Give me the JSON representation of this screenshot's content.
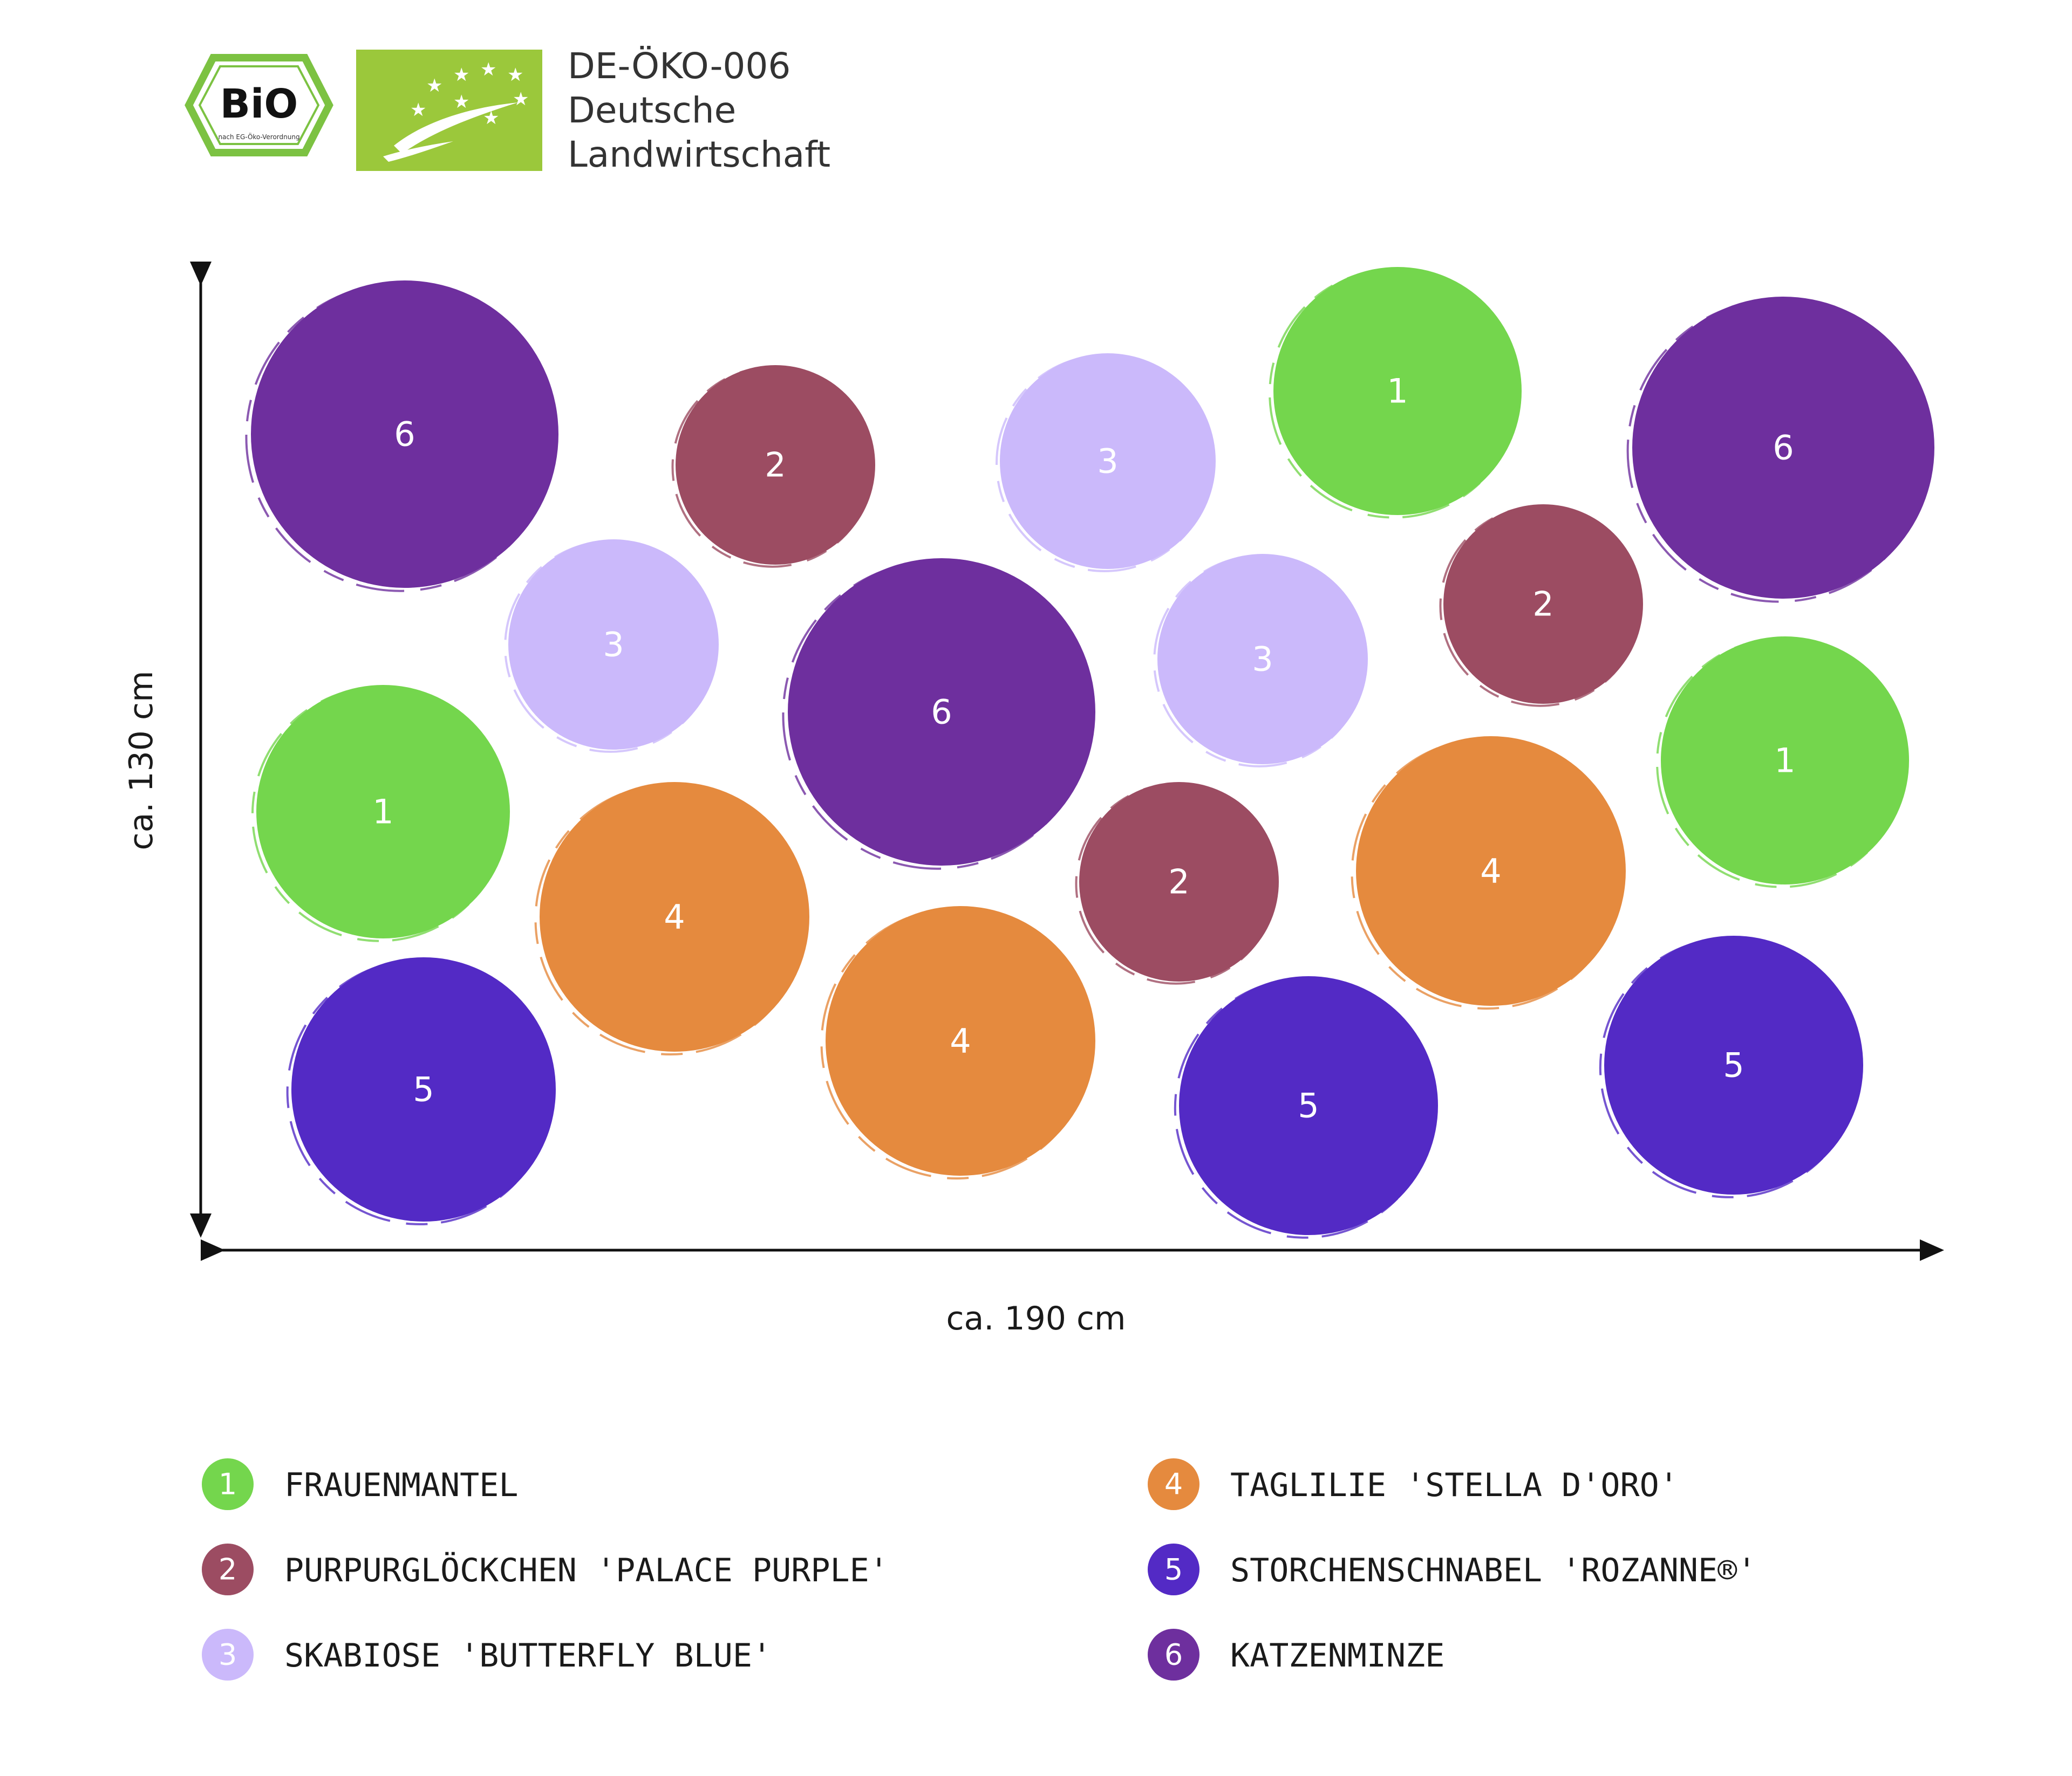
{
  "certification": {
    "bio_seal_text": "BiO",
    "bio_seal_subtext": "nach EG-Öko-Verordnung",
    "eu_logo": "eu-organic-leaf-logo",
    "code": "DE-ÖKO-006",
    "origin_line1": "Deutsche",
    "origin_line2": "Landwirtschaft"
  },
  "dimensions": {
    "height_label": "ca. 130 cm",
    "width_label": "ca. 190 cm"
  },
  "plant_colors": {
    "1": "#74d64d",
    "2": "#9c4c62",
    "3": "#cbb9fb",
    "4": "#e58a3e",
    "5": "#532ac5",
    "6": "#6e2f9e"
  },
  "legend": [
    {
      "number": "1",
      "name": "FRAUENMANTEL",
      "color": "#74d64d"
    },
    {
      "number": "2",
      "name": "PURPURGLÖCKCHEN 'PALACE PURPLE'",
      "color": "#9c4c62"
    },
    {
      "number": "3",
      "name": "SKABIOSE 'BUTTERFLY BLUE'",
      "color": "#cbb9fb"
    },
    {
      "number": "4",
      "name": "TAGLILIE 'STELLA D'ORO'",
      "color": "#e58a3e"
    },
    {
      "number": "5",
      "name": "STORCHENSCHNABEL 'ROZANNE®'",
      "color": "#532ac5"
    },
    {
      "number": "6",
      "name": "KATZENMINZE",
      "color": "#6e2f9e"
    }
  ],
  "plants": [
    {
      "number": "6"
    },
    {
      "number": "2"
    },
    {
      "number": "3"
    },
    {
      "number": "1"
    },
    {
      "number": "6"
    },
    {
      "number": "3"
    },
    {
      "number": "6"
    },
    {
      "number": "3"
    },
    {
      "number": "2"
    },
    {
      "number": "1"
    },
    {
      "number": "1"
    },
    {
      "number": "4"
    },
    {
      "number": "2"
    },
    {
      "number": "4"
    },
    {
      "number": "5"
    },
    {
      "number": "4"
    },
    {
      "number": "5"
    },
    {
      "number": "5"
    }
  ]
}
